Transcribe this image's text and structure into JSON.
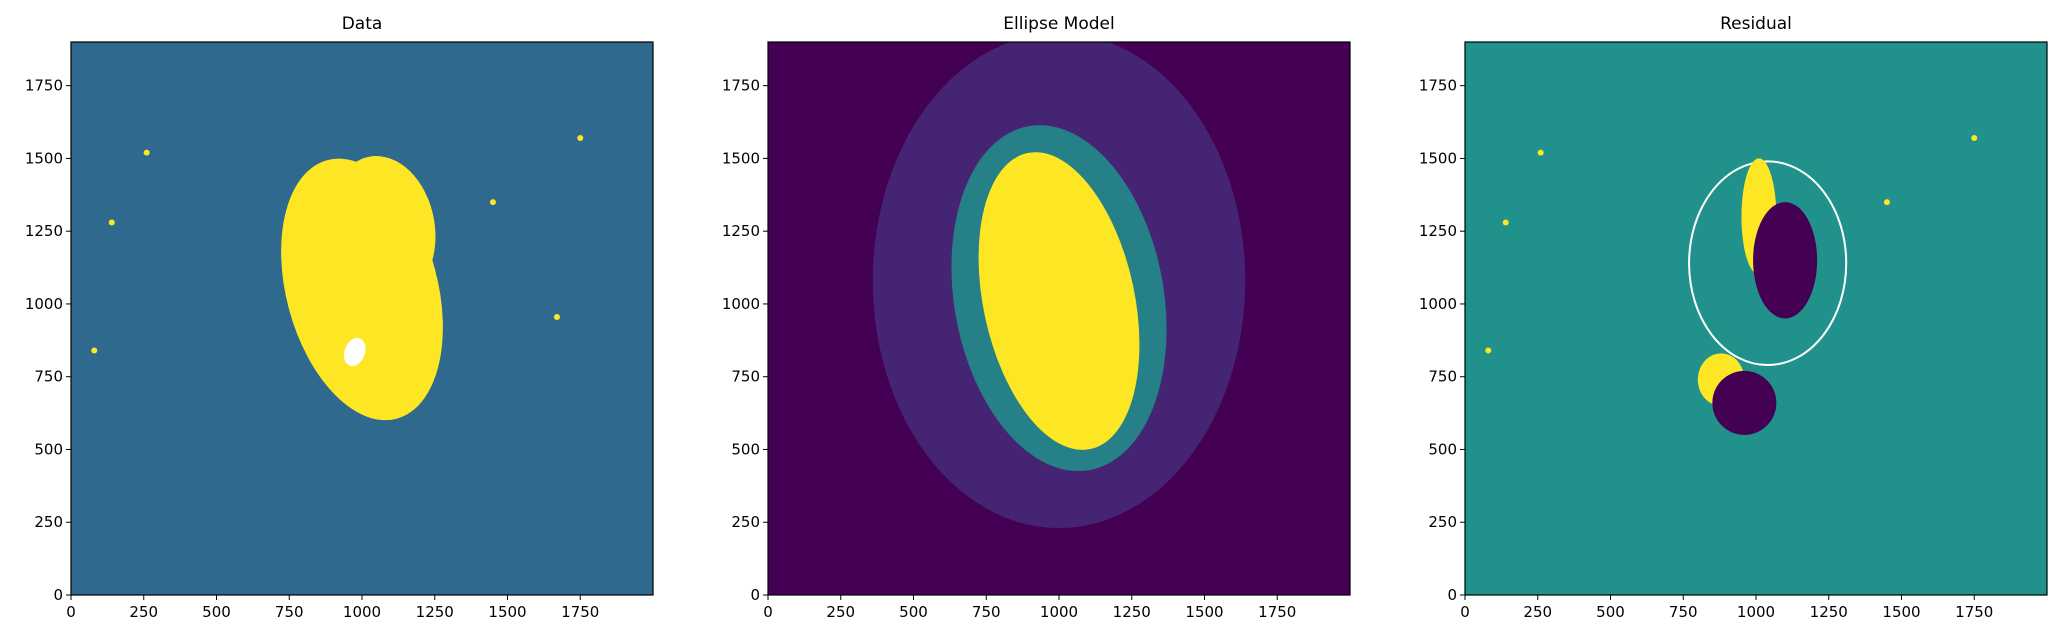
{
  "chart_data": [
    {
      "type": "heatmap",
      "title": "Data",
      "xlim": [
        0,
        2000
      ],
      "ylim": [
        0,
        1900
      ],
      "xticks": [
        0,
        250,
        500,
        750,
        1000,
        1250,
        1500,
        1750
      ],
      "yticks": [
        0,
        250,
        500,
        750,
        1000,
        1250,
        1500,
        1750
      ],
      "colormap": "viridis",
      "background_color": "#2f6a8e",
      "features": [
        {
          "kind": "galaxy-core",
          "center": [
            1000,
            1050
          ],
          "axes": [
            260,
            460
          ],
          "angle_deg": -15,
          "color": "#fde725"
        },
        {
          "kind": "galaxy-lobe",
          "center": [
            1070,
            1260
          ],
          "axes": [
            180,
            250
          ],
          "angle_deg": -10,
          "color": "#fde725"
        },
        {
          "kind": "masked-region",
          "center": [
            975,
            835
          ],
          "axes": [
            35,
            50
          ],
          "angle_deg": 20,
          "color": "#ffffff"
        },
        {
          "kind": "star",
          "center": [
            260,
            1520
          ],
          "color": "#fde725"
        },
        {
          "kind": "star",
          "center": [
            140,
            1280
          ],
          "color": "#fde725"
        },
        {
          "kind": "star",
          "center": [
            80,
            840
          ],
          "color": "#fde725"
        },
        {
          "kind": "star",
          "center": [
            1450,
            1350
          ],
          "color": "#fde725"
        },
        {
          "kind": "star",
          "center": [
            1750,
            1570
          ],
          "color": "#fde725"
        },
        {
          "kind": "star",
          "center": [
            1670,
            955
          ],
          "color": "#fde725"
        }
      ]
    },
    {
      "type": "heatmap",
      "title": "Ellipse Model",
      "xlim": [
        0,
        2000
      ],
      "ylim": [
        0,
        1900
      ],
      "xticks": [
        0,
        250,
        500,
        750,
        1000,
        1250,
        1500,
        1750
      ],
      "yticks": [
        0,
        250,
        500,
        750,
        1000,
        1250,
        1500,
        1750
      ],
      "colormap": "viridis",
      "background_color": "#440154",
      "features": [
        {
          "kind": "outer-halo",
          "center": [
            1000,
            1080
          ],
          "axes": [
            640,
            850
          ],
          "angle_deg": 0,
          "color": "#472a7a"
        },
        {
          "kind": "mid-halo",
          "center": [
            1000,
            1020
          ],
          "axes": [
            360,
            600
          ],
          "angle_deg": -10,
          "color": "#21918c"
        },
        {
          "kind": "core",
          "center": [
            1000,
            1010
          ],
          "axes": [
            260,
            520
          ],
          "angle_deg": -12,
          "color": "#fde725"
        }
      ]
    },
    {
      "type": "heatmap",
      "title": "Residual",
      "xlim": [
        0,
        2000
      ],
      "ylim": [
        0,
        1900
      ],
      "xticks": [
        0,
        250,
        500,
        750,
        1000,
        1250,
        1500,
        1750
      ],
      "yticks": [
        0,
        250,
        500,
        750,
        1000,
        1250,
        1500,
        1750
      ],
      "colormap": "viridis",
      "background_color": "#21918c",
      "features": [
        {
          "kind": "aperture-ellipse",
          "center": [
            1040,
            1140
          ],
          "axes": [
            270,
            350
          ],
          "angle_deg": 0,
          "color": "#ffffff"
        },
        {
          "kind": "positive-residual",
          "center": [
            1010,
            1300
          ],
          "axes": [
            60,
            200
          ],
          "angle_deg": 0,
          "color": "#fde725"
        },
        {
          "kind": "positive-residual",
          "center": [
            880,
            740
          ],
          "axes": [
            80,
            90
          ],
          "angle_deg": 0,
          "color": "#fde725"
        },
        {
          "kind": "negative-residual",
          "center": [
            1100,
            1150
          ],
          "axes": [
            110,
            200
          ],
          "angle_deg": 0,
          "color": "#440154"
        },
        {
          "kind": "negative-residual",
          "center": [
            960,
            660
          ],
          "axes": [
            110,
            110
          ],
          "angle_deg": 0,
          "color": "#440154"
        },
        {
          "kind": "star",
          "center": [
            260,
            1520
          ],
          "color": "#fde725"
        },
        {
          "kind": "star",
          "center": [
            140,
            1280
          ],
          "color": "#fde725"
        },
        {
          "kind": "star",
          "center": [
            80,
            840
          ],
          "color": "#fde725"
        },
        {
          "kind": "star",
          "center": [
            1450,
            1350
          ],
          "color": "#fde725"
        },
        {
          "kind": "star",
          "center": [
            1750,
            1570
          ],
          "color": "#fde725"
        }
      ]
    }
  ]
}
